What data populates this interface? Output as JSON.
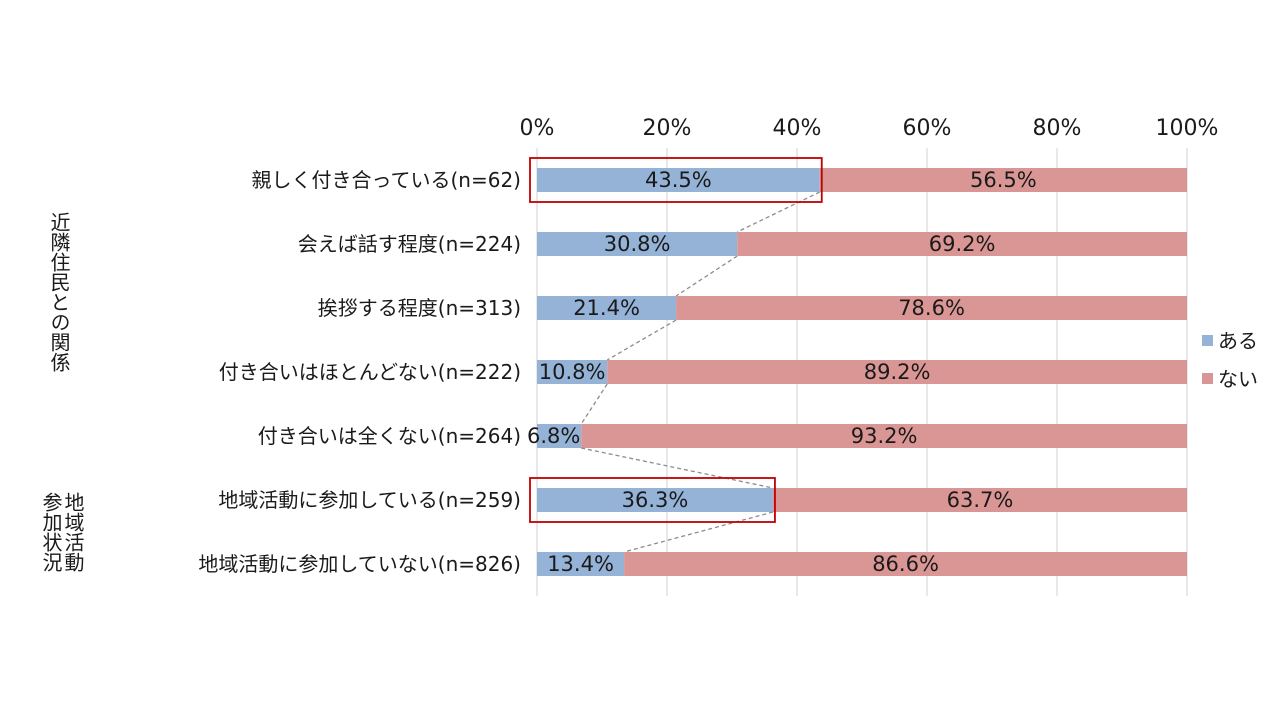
{
  "chart_data": {
    "type": "bar",
    "stacked": "percent",
    "orientation": "horizontal",
    "categories": [
      "親しく付き合っている(n=62)",
      "会えば話す程度(n=224)",
      "挨拶する程度(n=313)",
      "付き合いはほとんどない(n=222)",
      "付き合いは全くない(n=264)",
      "地域活動に参加している(n=259)",
      "地域活動に参加していない(n=826)"
    ],
    "series": [
      {
        "name": "ある",
        "color": "#95b3d7",
        "values": [
          43.5,
          30.8,
          21.4,
          10.8,
          6.8,
          36.3,
          13.4
        ],
        "labels": [
          "43.5%",
          "30.8%",
          "21.4%",
          "10.8%",
          "6.8%",
          "36.3%",
          "13.4%"
        ]
      },
      {
        "name": "ない",
        "color": "#d99694",
        "values": [
          56.5,
          69.2,
          78.6,
          89.2,
          93.2,
          63.7,
          86.6
        ],
        "labels": [
          "56.5%",
          "69.2%",
          "78.6%",
          "89.2%",
          "93.2%",
          "63.7%",
          "86.6%"
        ]
      }
    ],
    "x_ticks": [
      "0%",
      "20%",
      "40%",
      "60%",
      "80%",
      "100%"
    ],
    "xlim": [
      0,
      100
    ],
    "groups": [
      {
        "label": "近隣住民との関係",
        "rows": [
          0,
          1,
          2,
          3,
          4
        ]
      },
      {
        "label": "地域活動参加状況",
        "rows": [
          5,
          6
        ]
      }
    ],
    "highlight_rows": [
      0,
      5
    ],
    "highlight_color": "#c00000",
    "series_line": "dashed connector between ある bar ends",
    "grid": true,
    "legend_position": "right"
  }
}
